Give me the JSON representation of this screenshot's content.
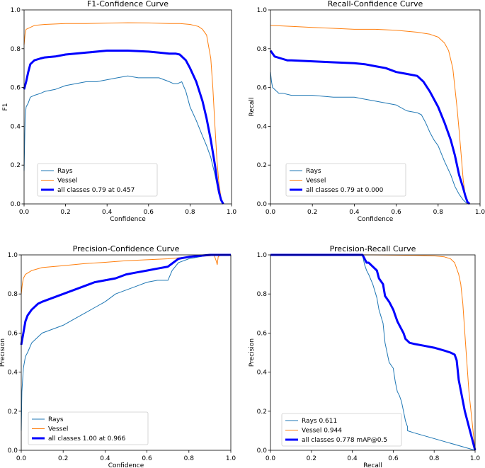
{
  "colors": {
    "rays": "#1f77b4",
    "vessel": "#ff7f0e",
    "all": "#0000ff",
    "axis": "#000000"
  },
  "chart_data": [
    {
      "type": "line",
      "title": "F1-Confidence Curve",
      "xlabel": "Confidence",
      "ylabel": "F1",
      "xlim": [
        0,
        1
      ],
      "ylim": [
        0,
        1
      ],
      "xticks": [
        "0.0",
        "0.2",
        "0.4",
        "0.6",
        "0.8",
        "1.0"
      ],
      "yticks": [
        "0.0",
        "0.2",
        "0.4",
        "0.6",
        "0.8",
        "1.0"
      ],
      "legend_position": "lower-left",
      "series": [
        {
          "name": "Rays",
          "x": [
            0,
            0.005,
            0.01,
            0.02,
            0.03,
            0.05,
            0.08,
            0.1,
            0.15,
            0.2,
            0.25,
            0.3,
            0.35,
            0.4,
            0.45,
            0.5,
            0.55,
            0.6,
            0.65,
            0.7,
            0.72,
            0.74,
            0.76,
            0.78,
            0.8,
            0.83,
            0.86,
            0.88,
            0.9,
            0.92,
            0.935,
            0.95,
            0.96
          ],
          "y": [
            0.17,
            0.45,
            0.5,
            0.52,
            0.55,
            0.56,
            0.57,
            0.58,
            0.59,
            0.61,
            0.62,
            0.63,
            0.63,
            0.64,
            0.65,
            0.66,
            0.65,
            0.65,
            0.65,
            0.63,
            0.62,
            0.62,
            0.63,
            0.58,
            0.5,
            0.43,
            0.35,
            0.3,
            0.24,
            0.15,
            0.07,
            0.02,
            0.0
          ]
        },
        {
          "name": "Vessel",
          "x": [
            0,
            0.005,
            0.01,
            0.03,
            0.05,
            0.1,
            0.2,
            0.3,
            0.4,
            0.5,
            0.6,
            0.7,
            0.75,
            0.8,
            0.84,
            0.86,
            0.88,
            0.9,
            0.91,
            0.92,
            0.93,
            0.94,
            0.95,
            0.96
          ],
          "y": [
            0.82,
            0.88,
            0.9,
            0.91,
            0.92,
            0.925,
            0.93,
            0.93,
            0.932,
            0.934,
            0.933,
            0.93,
            0.93,
            0.925,
            0.915,
            0.9,
            0.87,
            0.75,
            0.6,
            0.4,
            0.22,
            0.1,
            0.03,
            0.0
          ]
        },
        {
          "name": "all classes 0.79 at 0.457",
          "x": [
            0,
            0.01,
            0.02,
            0.03,
            0.05,
            0.08,
            0.1,
            0.15,
            0.2,
            0.3,
            0.4,
            0.457,
            0.5,
            0.6,
            0.65,
            0.7,
            0.73,
            0.75,
            0.78,
            0.8,
            0.83,
            0.86,
            0.88,
            0.9,
            0.92,
            0.93,
            0.94,
            0.95,
            0.96
          ],
          "y": [
            0.59,
            0.63,
            0.68,
            0.72,
            0.74,
            0.75,
            0.755,
            0.76,
            0.77,
            0.78,
            0.79,
            0.79,
            0.79,
            0.785,
            0.78,
            0.775,
            0.775,
            0.77,
            0.74,
            0.7,
            0.63,
            0.53,
            0.44,
            0.33,
            0.2,
            0.12,
            0.06,
            0.02,
            0.0
          ]
        }
      ]
    },
    {
      "type": "line",
      "title": "Recall-Confidence Curve",
      "xlabel": "Confidence",
      "ylabel": "Recall",
      "xlim": [
        0,
        1
      ],
      "ylim": [
        0,
        1
      ],
      "xticks": [
        "0.0",
        "0.2",
        "0.4",
        "0.6",
        "0.8",
        "1.0"
      ],
      "yticks": [
        "0.0",
        "0.2",
        "0.4",
        "0.6",
        "0.8",
        "1.0"
      ],
      "legend_position": "lower-left",
      "series": [
        {
          "name": "Rays",
          "x": [
            0,
            0.005,
            0.01,
            0.02,
            0.04,
            0.06,
            0.1,
            0.2,
            0.3,
            0.4,
            0.5,
            0.55,
            0.6,
            0.65,
            0.7,
            0.72,
            0.74,
            0.76,
            0.78,
            0.8,
            0.83,
            0.86,
            0.88,
            0.9,
            0.92,
            0.94
          ],
          "y": [
            0.68,
            0.63,
            0.6,
            0.59,
            0.57,
            0.57,
            0.56,
            0.56,
            0.55,
            0.55,
            0.53,
            0.52,
            0.51,
            0.48,
            0.47,
            0.46,
            0.42,
            0.37,
            0.33,
            0.3,
            0.22,
            0.15,
            0.09,
            0.05,
            0.02,
            0.0
          ]
        },
        {
          "name": "Vessel",
          "x": [
            0,
            0.1,
            0.2,
            0.3,
            0.4,
            0.5,
            0.6,
            0.7,
            0.76,
            0.8,
            0.83,
            0.85,
            0.87,
            0.89,
            0.9,
            0.91,
            0.92,
            0.93,
            0.94
          ],
          "y": [
            0.92,
            0.915,
            0.91,
            0.905,
            0.9,
            0.9,
            0.895,
            0.885,
            0.875,
            0.86,
            0.83,
            0.79,
            0.7,
            0.5,
            0.38,
            0.25,
            0.12,
            0.04,
            0.0
          ]
        },
        {
          "name": "all classes 0.79 at 0.000",
          "x": [
            0,
            0.02,
            0.05,
            0.08,
            0.1,
            0.2,
            0.3,
            0.4,
            0.45,
            0.5,
            0.55,
            0.6,
            0.65,
            0.7,
            0.73,
            0.76,
            0.8,
            0.83,
            0.86,
            0.88,
            0.9,
            0.92,
            0.93,
            0.94,
            0.95
          ],
          "y": [
            0.79,
            0.76,
            0.75,
            0.74,
            0.74,
            0.735,
            0.73,
            0.725,
            0.72,
            0.71,
            0.7,
            0.68,
            0.67,
            0.66,
            0.63,
            0.58,
            0.5,
            0.42,
            0.33,
            0.25,
            0.15,
            0.08,
            0.04,
            0.01,
            0.0
          ]
        }
      ]
    },
    {
      "type": "line",
      "title": "Precision-Confidence Curve",
      "xlabel": "Confidence",
      "ylabel": "Precision",
      "xlim": [
        0,
        1
      ],
      "ylim": [
        0,
        1
      ],
      "xticks": [
        "0.0",
        "0.2",
        "0.4",
        "0.6",
        "0.8",
        "1.0"
      ],
      "yticks": [
        "0.0",
        "0.2",
        "0.4",
        "0.6",
        "0.8",
        "1.0"
      ],
      "legend_position": "lower-left",
      "series": [
        {
          "name": "Rays",
          "x": [
            0,
            0.003,
            0.01,
            0.02,
            0.03,
            0.05,
            0.08,
            0.1,
            0.15,
            0.2,
            0.25,
            0.3,
            0.35,
            0.4,
            0.45,
            0.5,
            0.55,
            0.6,
            0.65,
            0.7,
            0.72,
            0.75,
            0.8,
            0.9,
            0.966,
            1.0
          ],
          "y": [
            0.1,
            0.3,
            0.42,
            0.48,
            0.5,
            0.55,
            0.58,
            0.6,
            0.62,
            0.64,
            0.67,
            0.7,
            0.73,
            0.76,
            0.8,
            0.82,
            0.84,
            0.86,
            0.87,
            0.87,
            0.92,
            0.96,
            0.98,
            1.0,
            1.0,
            1.0
          ]
        },
        {
          "name": "Vessel",
          "x": [
            0,
            0.005,
            0.01,
            0.02,
            0.05,
            0.1,
            0.2,
            0.3,
            0.4,
            0.5,
            0.6,
            0.7,
            0.8,
            0.9,
            0.92,
            0.93,
            0.935,
            0.94,
            0.95,
            0.96
          ],
          "y": [
            0.8,
            0.85,
            0.88,
            0.9,
            0.92,
            0.935,
            0.945,
            0.955,
            0.962,
            0.97,
            0.975,
            0.98,
            0.99,
            0.995,
            1.0,
            0.97,
            0.95,
            0.99,
            1.0,
            1.0
          ]
        },
        {
          "name": "all classes 1.00 at 0.966",
          "x": [
            0,
            0.01,
            0.02,
            0.03,
            0.05,
            0.08,
            0.1,
            0.15,
            0.2,
            0.25,
            0.3,
            0.35,
            0.4,
            0.45,
            0.5,
            0.55,
            0.6,
            0.65,
            0.7,
            0.75,
            0.8,
            0.85,
            0.9,
            0.966,
            1.0
          ],
          "y": [
            0.54,
            0.6,
            0.66,
            0.69,
            0.72,
            0.75,
            0.76,
            0.78,
            0.8,
            0.82,
            0.84,
            0.86,
            0.87,
            0.88,
            0.9,
            0.91,
            0.92,
            0.93,
            0.94,
            0.98,
            0.99,
            0.995,
            1.0,
            1.0,
            1.0
          ]
        }
      ]
    },
    {
      "type": "line",
      "title": "Precision-Recall Curve",
      "xlabel": "Recall",
      "ylabel": "Precision",
      "xlim": [
        0,
        1
      ],
      "ylim": [
        0,
        1
      ],
      "xticks": [
        "0.0",
        "0.2",
        "0.4",
        "0.6",
        "0.8",
        "1.0"
      ],
      "yticks": [
        "0.0",
        "0.2",
        "0.4",
        "0.6",
        "0.8",
        "1.0"
      ],
      "legend_position": "lower-left",
      "series": [
        {
          "name": "Rays 0.611",
          "x": [
            0,
            0.45,
            0.46,
            0.47,
            0.48,
            0.5,
            0.52,
            0.53,
            0.55,
            0.56,
            0.57,
            0.58,
            0.6,
            0.61,
            0.62,
            0.63,
            0.64,
            0.65,
            0.66,
            0.67,
            0.67,
            0.7,
            1.0
          ],
          "y": [
            1.0,
            1.0,
            0.95,
            0.92,
            0.9,
            0.85,
            0.78,
            0.72,
            0.65,
            0.55,
            0.5,
            0.45,
            0.42,
            0.35,
            0.3,
            0.28,
            0.25,
            0.2,
            0.15,
            0.12,
            0.1,
            0.09,
            0.0
          ]
        },
        {
          "name": "Vessel 0.944",
          "x": [
            0,
            0.5,
            0.7,
            0.8,
            0.85,
            0.88,
            0.9,
            0.92,
            0.93,
            0.94,
            0.95,
            0.96,
            0.97,
            0.98,
            1.0
          ],
          "y": [
            1.0,
            1.0,
            0.998,
            0.995,
            0.99,
            0.98,
            0.96,
            0.9,
            0.85,
            0.75,
            0.6,
            0.45,
            0.3,
            0.2,
            0.0
          ]
        },
        {
          "name": "all classes 0.778 mAP@0.5",
          "x": [
            0,
            0.45,
            0.46,
            0.47,
            0.48,
            0.5,
            0.52,
            0.53,
            0.55,
            0.56,
            0.58,
            0.6,
            0.61,
            0.62,
            0.63,
            0.64,
            0.65,
            0.66,
            0.68,
            0.7,
            0.75,
            0.8,
            0.85,
            0.88,
            0.9,
            0.91,
            0.92,
            0.95,
            1.0
          ],
          "y": [
            1.0,
            1.0,
            0.98,
            0.96,
            0.96,
            0.94,
            0.92,
            0.88,
            0.85,
            0.79,
            0.76,
            0.72,
            0.69,
            0.66,
            0.64,
            0.62,
            0.6,
            0.57,
            0.55,
            0.545,
            0.535,
            0.525,
            0.51,
            0.5,
            0.49,
            0.46,
            0.36,
            0.2,
            0.0
          ]
        }
      ]
    }
  ]
}
